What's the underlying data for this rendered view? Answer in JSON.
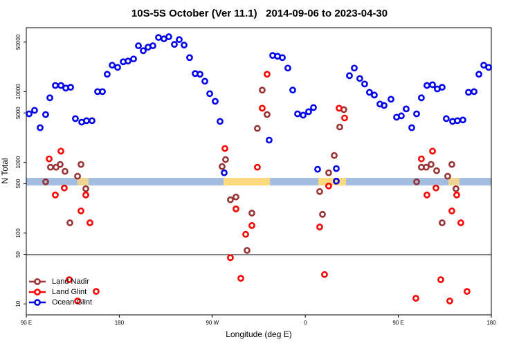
{
  "chart_data": {
    "type": "scatter",
    "title": "10S-5S October (Ver 11.1)   2014-09-06 to 2023-04-30",
    "x_label": "Longitude (deg E)",
    "y_label": "N Total",
    "log_y": true,
    "legend": "lower left",
    "xlim": [
      90,
      540
    ],
    "xticks": [
      {
        "value": 90,
        "label": "90 E"
      },
      180,
      {
        "value": 270,
        "label": "90 W"
      },
      {
        "value": 360,
        "label": "0"
      },
      {
        "value": 450,
        "label": "90 E"
      },
      {
        "value": 540,
        "label": "180"
      }
    ],
    "ylim": [
      7,
      80000
    ],
    "yticks": [
      10,
      50,
      100,
      500,
      1000,
      5000,
      10000,
      50000
    ],
    "series": [
      {
        "name": "Land Nadir",
        "color": "#993333",
        "x": [
          108.7,
          113.4,
          118.8,
          122.8,
          127.5,
          132.2,
          139.6,
          142.9,
          147.6,
          279.5,
          282.8,
          287.5,
          292.9,
          303.6,
          308.3,
          313.6,
          318.3,
          323,
          373.9,
          376.6,
          382.6,
          388,
          393.3,
          397.3,
          467.7,
          472.3,
          477,
          481.7,
          487.1,
          492.4,
          497.8,
          501.8,
          505.8
        ],
        "values": [
          531,
          853,
          853,
          935,
          746,
          140,
          637,
          935,
          424,
          873,
          1095,
          296,
          324,
          57,
          192,
          3020,
          10500,
          4740,
          387,
          184,
          713,
          1250,
          3160,
          5560,
          531,
          853,
          853,
          935,
          762,
          140,
          637,
          935,
          424
        ]
      },
      {
        "name": "Land Glint",
        "color": "#ff0000",
        "x": [
          112.1,
          118.1,
          123.5,
          126.8,
          131.5,
          139.6,
          142.9,
          147.6,
          151.6,
          157.6,
          282.2,
          287.5,
          292.9,
          297.6,
          302.3,
          308.3,
          313.6,
          318.3,
          323,
          373.9,
          378.6,
          382.6,
          392.7,
          398,
          467,
          472.3,
          477.7,
          483.1,
          486.4,
          491.1,
          499.8,
          501.8,
          506.5,
          510.5,
          516.5
        ],
        "values": [
          1120,
          346,
          1440,
          434,
          22,
          11,
          206,
          346,
          140,
          15,
          1570,
          45,
          220,
          23,
          96,
          128,
          853,
          5820,
          17600,
          122,
          26,
          464,
          5820,
          4240,
          12,
          1120,
          346,
          1440,
          434,
          22,
          11,
          206,
          346,
          140,
          15
        ]
      },
      {
        "name": "Ocean Glint",
        "color": "#0000ee",
        "x": [
          92.7,
          98,
          103.4,
          108.7,
          112.8,
          118.1,
          123.5,
          128.2,
          132.9,
          137.5,
          143.6,
          148.3,
          153.6,
          159,
          163.7,
          168.3,
          173.1,
          178.4,
          183.8,
          188.4,
          193.8,
          198.5,
          203.2,
          207.8,
          212.5,
          217.9,
          223.2,
          227.9,
          233.3,
          238,
          242.7,
          248,
          253.4,
          258.1,
          262.8,
          267.5,
          272.8,
          277.5,
          281.5,
          325,
          328.4,
          333.1,
          337.8,
          343.1,
          347.8,
          352.5,
          357.9,
          363.2,
          367.9,
          371.9,
          390,
          390,
          402.7,
          407.4,
          412.7,
          417.4,
          422.1,
          426.8,
          432.2,
          436.2,
          442.9,
          448.3,
          452.9,
          457.6,
          463,
          467.7,
          472.3,
          477.7,
          483.1,
          487.7,
          492.4,
          496.4,
          502.5,
          507.2,
          512.5,
          517.9,
          523.3,
          528,
          532.7,
          537.4
        ],
        "values": [
          4850,
          5430,
          3090,
          4740,
          8170,
          12200,
          12200,
          11200,
          11500,
          4150,
          3700,
          3880,
          3880,
          10000,
          10000,
          17600,
          23600,
          22000,
          26400,
          27000,
          28900,
          44400,
          37800,
          42400,
          44400,
          58200,
          55600,
          59600,
          46500,
          54300,
          45400,
          30200,
          18000,
          17600,
          14000,
          9350,
          7290,
          3790,
          713,
          2060,
          32400,
          31600,
          30200,
          21500,
          10500,
          4850,
          4640,
          5200,
          5950,
          798,
          817,
          543,
          16800,
          21500,
          15300,
          12800,
          9770,
          8930,
          6670,
          6370,
          7800,
          4340,
          4540,
          5690,
          3090,
          4850,
          8170,
          12200,
          12500,
          10900,
          11500,
          4150,
          3790,
          3880,
          3970,
          9770,
          10000,
          17600,
          23600,
          22000
        ]
      }
    ]
  }
}
